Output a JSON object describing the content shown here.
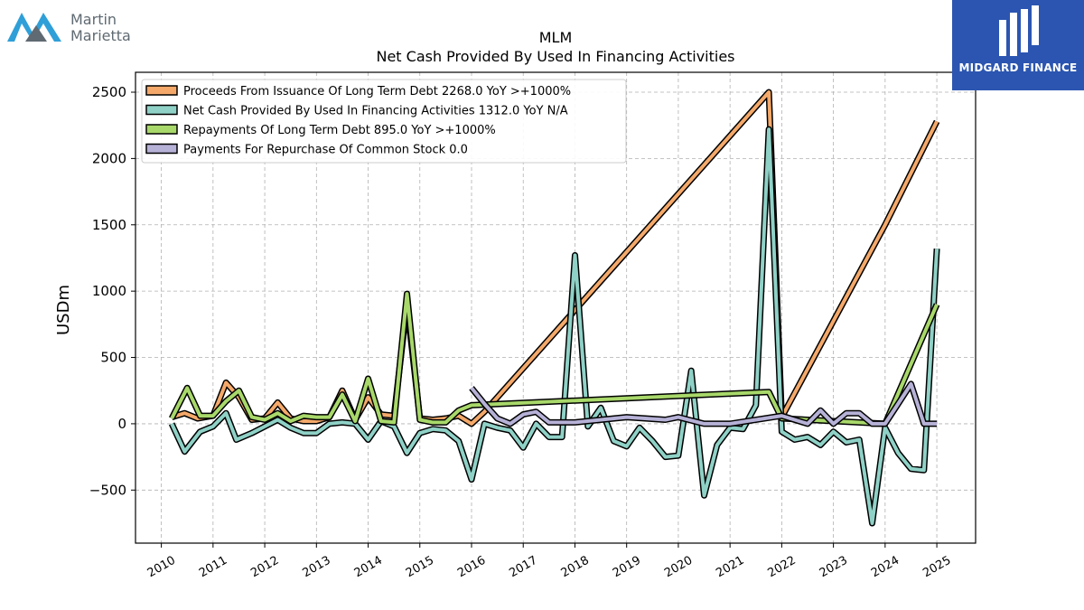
{
  "brand": {
    "company_line1": "Martin",
    "company_line2": "Marietta",
    "publisher": "MIDGARD FINANCE"
  },
  "chart_data": {
    "type": "line",
    "title": "MLM",
    "subtitle": "Net Cash Provided By Used In Financing Activities",
    "xlabel": "",
    "ylabel": "USDm",
    "xlim": [
      2009.5,
      2025.75
    ],
    "ylim": [
      -900,
      2650
    ],
    "x_ticks": [
      2010,
      2011,
      2012,
      2013,
      2014,
      2015,
      2016,
      2017,
      2018,
      2019,
      2020,
      2021,
      2022,
      2023,
      2024,
      2025
    ],
    "x_tick_labels": [
      "2010",
      "2011",
      "2012",
      "2013",
      "2014",
      "2015",
      "2016",
      "2017",
      "2018",
      "2019",
      "2020",
      "2021",
      "2022",
      "2023",
      "2024",
      "2025"
    ],
    "y_ticks": [
      -500,
      0,
      500,
      1000,
      1500,
      2000,
      2500
    ],
    "y_tick_labels": [
      "−500",
      "0",
      "500",
      "1000",
      "1500",
      "2000",
      "2500"
    ],
    "grid": true,
    "legend_position": "top-left",
    "series": [
      {
        "name": "Proceeds From Issuance Of Long Term Debt  2268.0 YoY >+1000%",
        "color": "#f4a96a",
        "x": [
          2010.2,
          2010.45,
          2010.7,
          2011.0,
          2011.25,
          2011.5,
          2011.75,
          2012.0,
          2012.25,
          2012.5,
          2012.75,
          2013.0,
          2013.25,
          2013.5,
          2013.75,
          2014.0,
          2014.25,
          2014.5,
          2014.75,
          2015.0,
          2015.25,
          2015.5,
          2015.75,
          2016.0,
          2016.25,
          2021.75,
          2022.0,
          2024.0,
          2025.0
        ],
        "y": [
          50,
          80,
          40,
          60,
          310,
          200,
          30,
          40,
          160,
          40,
          20,
          20,
          50,
          250,
          30,
          200,
          70,
          60,
          900,
          40,
          30,
          40,
          60,
          0,
          90,
          2500,
          50,
          1500,
          2280
        ]
      },
      {
        "name": "Net Cash Provided By Used In Financing Activities  1312.0 YoY N/A",
        "color": "#8fd1c6",
        "x": [
          2010.2,
          2010.45,
          2010.75,
          2011.0,
          2011.25,
          2011.45,
          2011.75,
          2012.0,
          2012.25,
          2012.5,
          2012.75,
          2013.0,
          2013.25,
          2013.5,
          2013.75,
          2014.0,
          2014.25,
          2014.5,
          2014.75,
          2015.0,
          2015.25,
          2015.5,
          2015.75,
          2016.0,
          2016.25,
          2016.5,
          2016.75,
          2017.0,
          2017.25,
          2017.5,
          2017.75,
          2018.0,
          2018.25,
          2018.5,
          2018.75,
          2019.0,
          2019.25,
          2019.5,
          2019.75,
          2020.0,
          2020.25,
          2020.5,
          2020.75,
          2021.0,
          2021.25,
          2021.5,
          2021.75,
          2022.0,
          2022.25,
          2022.5,
          2022.75,
          2023.0,
          2023.25,
          2023.5,
          2023.75,
          2024.0,
          2024.25,
          2024.5,
          2024.75,
          2025.0
        ],
        "y": [
          0,
          -210,
          -60,
          -20,
          80,
          -120,
          -70,
          -20,
          30,
          -30,
          -70,
          -70,
          0,
          10,
          0,
          -120,
          20,
          -20,
          -220,
          -70,
          -40,
          -50,
          -130,
          -420,
          0,
          -30,
          -50,
          -180,
          0,
          -100,
          -100,
          1270,
          -20,
          120,
          -130,
          -170,
          -30,
          -130,
          -250,
          -240,
          400,
          -540,
          -160,
          -30,
          -40,
          140,
          2220,
          -60,
          -120,
          -100,
          -160,
          -60,
          -140,
          -120,
          -750,
          -30,
          -220,
          -340,
          -350,
          1320
        ]
      },
      {
        "name": "Repayments Of Long Term Debt  895.0 YoY >+1000%",
        "color": "#a8d86a",
        "x": [
          2010.2,
          2010.5,
          2010.75,
          2011.0,
          2011.25,
          2011.5,
          2011.75,
          2012.0,
          2012.25,
          2012.5,
          2012.75,
          2013.0,
          2013.25,
          2013.5,
          2013.75,
          2014.0,
          2014.25,
          2014.5,
          2014.75,
          2015.0,
          2015.25,
          2015.5,
          2015.75,
          2016.0,
          2021.75,
          2022.0,
          2024.0,
          2025.0
        ],
        "y": [
          40,
          270,
          60,
          60,
          170,
          250,
          50,
          30,
          80,
          20,
          60,
          50,
          50,
          220,
          20,
          340,
          20,
          10,
          980,
          30,
          10,
          10,
          100,
          140,
          240,
          40,
          0,
          900
        ]
      },
      {
        "name": "Payments For Repurchase Of Common Stock  0.0",
        "color": "#b6b1d6",
        "x": [
          2016.0,
          2016.25,
          2016.5,
          2016.75,
          2017.0,
          2017.25,
          2017.5,
          2018.0,
          2019.0,
          2019.75,
          2020.0,
          2020.5,
          2021.0,
          2022.0,
          2022.25,
          2022.5,
          2022.75,
          2023.0,
          2023.25,
          2023.5,
          2023.75,
          2024.0,
          2024.25,
          2024.5,
          2024.75,
          2025.0
        ],
        "y": [
          270,
          150,
          40,
          0,
          70,
          90,
          10,
          10,
          50,
          30,
          50,
          0,
          0,
          60,
          30,
          0,
          100,
          0,
          80,
          80,
          0,
          0,
          150,
          300,
          0,
          0
        ]
      }
    ]
  }
}
